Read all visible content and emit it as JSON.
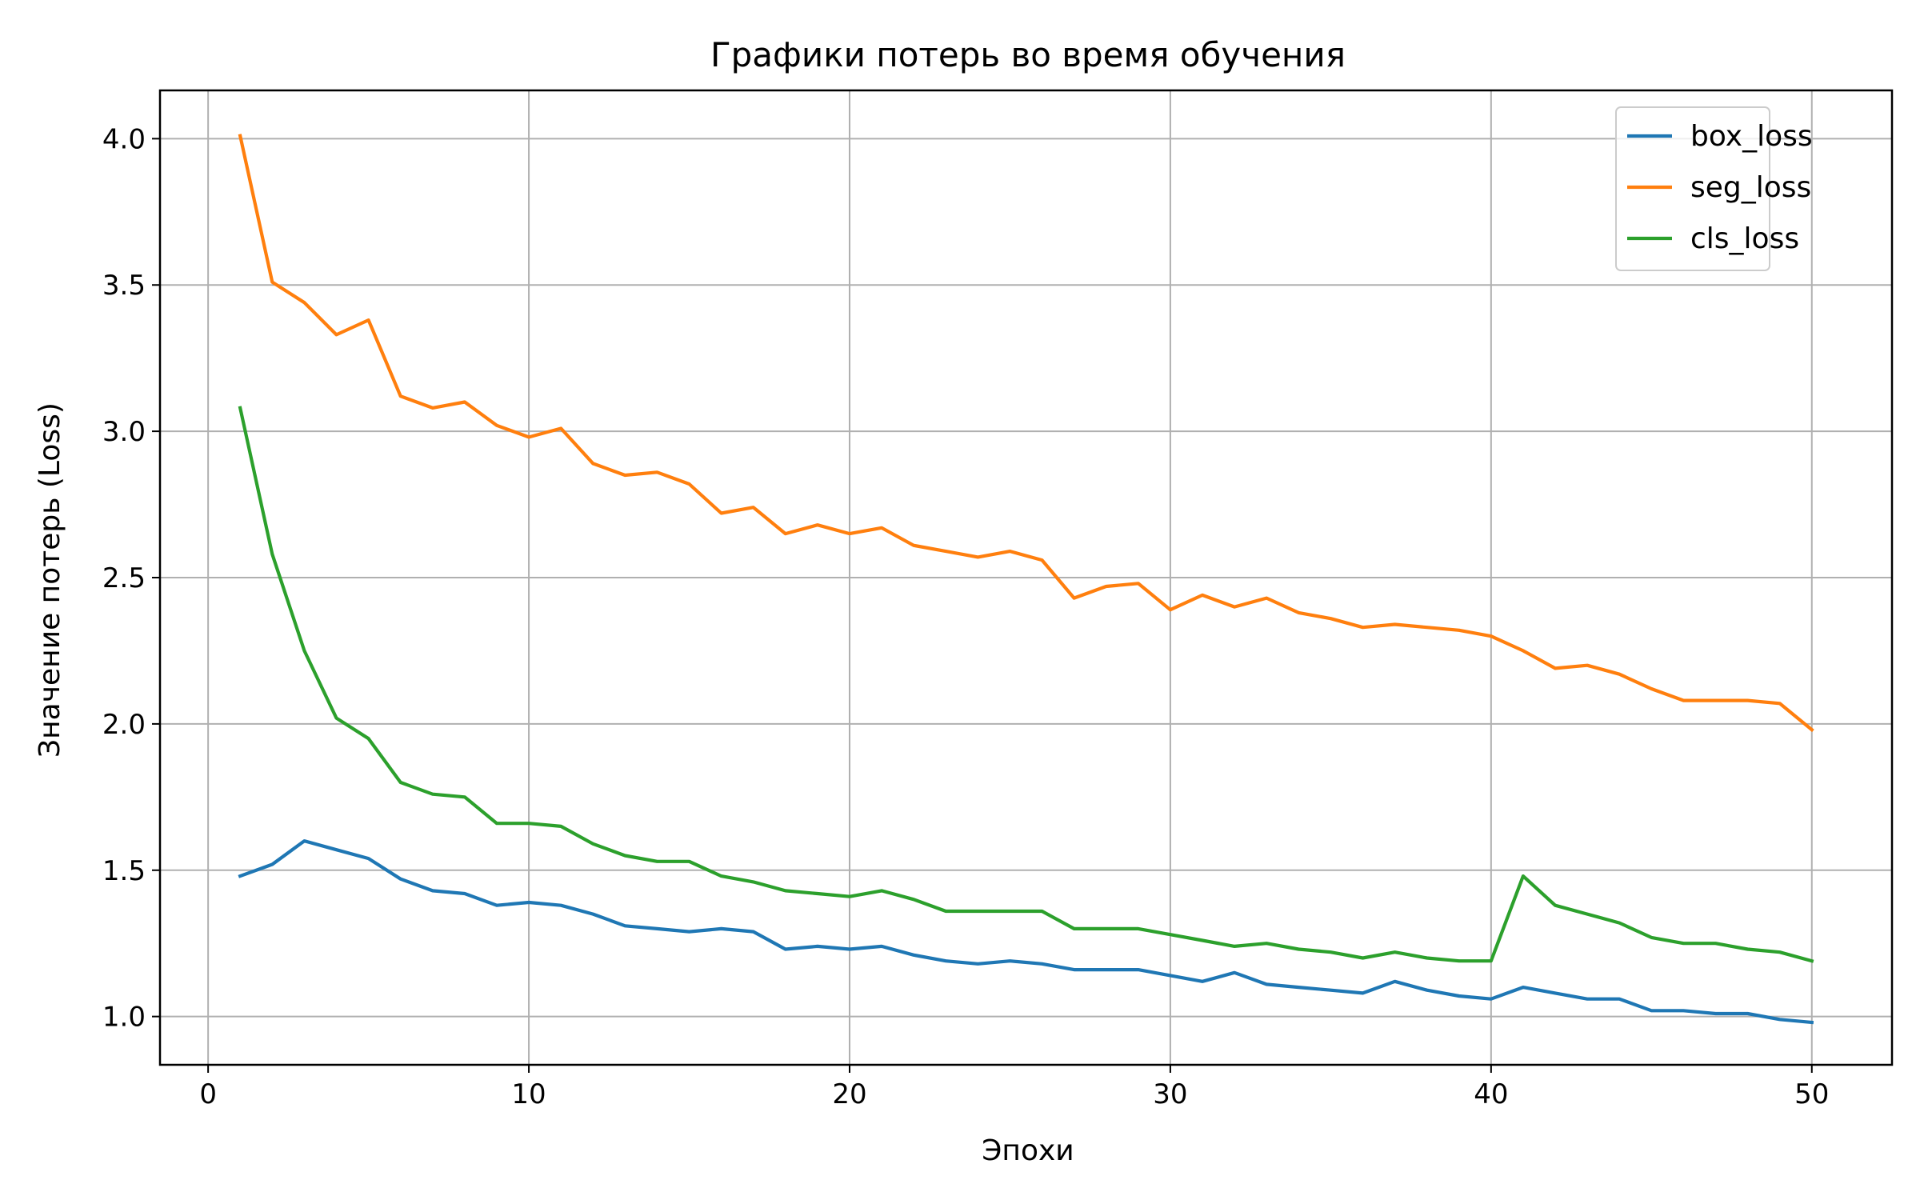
{
  "chart_data": {
    "type": "line",
    "title": "Графики потерь во время обучения",
    "xlabel": "Эпохи",
    "ylabel": "Значение потерь (Loss)",
    "xlim": [
      -1.5,
      52.5
    ],
    "ylim": [
      0.835,
      4.165
    ],
    "xticks": [
      0,
      10,
      20,
      30,
      40,
      50
    ],
    "xtick_labels": [
      "0",
      "10",
      "20",
      "30",
      "40",
      "50"
    ],
    "yticks": [
      1.0,
      1.5,
      2.0,
      2.5,
      3.0,
      3.5,
      4.0
    ],
    "ytick_labels": [
      "1.0",
      "1.5",
      "2.0",
      "2.5",
      "3.0",
      "3.5",
      "4.0"
    ],
    "grid": true,
    "legend_position": "top-right",
    "x": [
      1,
      2,
      3,
      4,
      5,
      6,
      7,
      8,
      9,
      10,
      11,
      12,
      13,
      14,
      15,
      16,
      17,
      18,
      19,
      20,
      21,
      22,
      23,
      24,
      25,
      26,
      27,
      28,
      29,
      30,
      31,
      32,
      33,
      34,
      35,
      36,
      37,
      38,
      39,
      40,
      41,
      42,
      43,
      44,
      45,
      46,
      47,
      48,
      49,
      50
    ],
    "series": [
      {
        "name": "box_loss",
        "color": "#1f77b4",
        "values": [
          1.48,
          1.52,
          1.6,
          1.57,
          1.54,
          1.47,
          1.43,
          1.42,
          1.38,
          1.39,
          1.38,
          1.35,
          1.31,
          1.3,
          1.29,
          1.3,
          1.29,
          1.23,
          1.24,
          1.23,
          1.24,
          1.21,
          1.19,
          1.18,
          1.19,
          1.18,
          1.16,
          1.16,
          1.16,
          1.14,
          1.12,
          1.15,
          1.11,
          1.1,
          1.09,
          1.08,
          1.12,
          1.09,
          1.07,
          1.06,
          1.1,
          1.08,
          1.06,
          1.06,
          1.02,
          1.02,
          1.01,
          1.01,
          0.99,
          0.98
        ]
      },
      {
        "name": "seg_loss",
        "color": "#ff7f0e",
        "values": [
          4.01,
          3.51,
          3.44,
          3.33,
          3.38,
          3.12,
          3.08,
          3.1,
          3.02,
          2.98,
          3.01,
          2.89,
          2.85,
          2.86,
          2.82,
          2.72,
          2.74,
          2.65,
          2.68,
          2.65,
          2.67,
          2.61,
          2.59,
          2.57,
          2.59,
          2.56,
          2.43,
          2.47,
          2.48,
          2.39,
          2.44,
          2.4,
          2.43,
          2.38,
          2.36,
          2.33,
          2.34,
          2.33,
          2.32,
          2.3,
          2.25,
          2.19,
          2.2,
          2.17,
          2.12,
          2.08,
          2.08,
          2.08,
          2.07,
          1.98
        ]
      },
      {
        "name": "cls_loss",
        "color": "#2ca02c",
        "values": [
          3.08,
          2.58,
          2.25,
          2.02,
          1.95,
          1.8,
          1.76,
          1.75,
          1.66,
          1.66,
          1.65,
          1.59,
          1.55,
          1.53,
          1.53,
          1.48,
          1.46,
          1.43,
          1.42,
          1.41,
          1.43,
          1.4,
          1.36,
          1.36,
          1.36,
          1.36,
          1.3,
          1.3,
          1.3,
          1.28,
          1.26,
          1.24,
          1.25,
          1.23,
          1.22,
          1.2,
          1.22,
          1.2,
          1.19,
          1.19,
          1.48,
          1.38,
          1.35,
          1.32,
          1.27,
          1.25,
          1.25,
          1.23,
          1.22,
          1.19
        ]
      }
    ]
  }
}
